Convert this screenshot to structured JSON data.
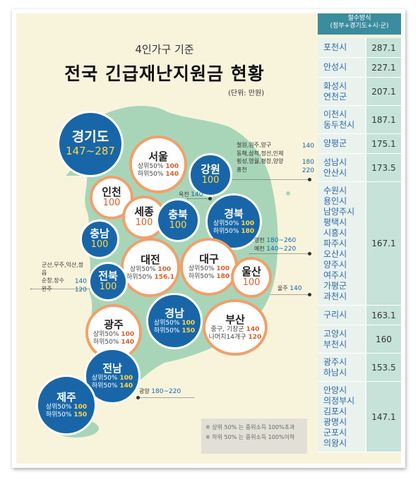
{
  "header": {
    "subtitle": "4인가구 기준",
    "title": "전국 긴급재난지원금 현황",
    "unit": "(단위: 만원)"
  },
  "regions": {
    "gyeonggi": {
      "name": "경기도",
      "range": "147~287"
    },
    "seoul": {
      "name": "서울",
      "line1_label": "상위50%",
      "line1_value": "100",
      "line2_label": "하위50%",
      "line2_value": "140"
    },
    "incheon": {
      "name": "인천",
      "value": "100"
    },
    "gangwon": {
      "name": "강원",
      "value": "100"
    },
    "sejong": {
      "name": "세종",
      "value": "100"
    },
    "chungbuk": {
      "name": "충북",
      "value": "100"
    },
    "gyeongbuk": {
      "name": "경북",
      "line1_label": "상위50%",
      "line1_value": "100",
      "line2_label": "하위50%",
      "line2_value": "180"
    },
    "chungnam": {
      "name": "충남",
      "value": "100"
    },
    "daejeon": {
      "name": "대전",
      "line1_label": "상위50%",
      "line1_value": "100",
      "line2_label": "하위50%",
      "line2_value": "156.1"
    },
    "daegu": {
      "name": "대구",
      "line1_label": "상위50%",
      "line1_value": "100",
      "line2_label": "하위50%",
      "line2_value": "180"
    },
    "ulsan": {
      "name": "울산",
      "value": "100"
    },
    "jeonbuk": {
      "name": "전북",
      "value": "100"
    },
    "gyeongnam": {
      "name": "경남",
      "line1_label": "상위50%",
      "line1_value": "100",
      "line2_label": "하위50%",
      "line2_value": "150"
    },
    "gwangju": {
      "name": "광주",
      "line1_label": "상위50%",
      "line1_value": "100",
      "line2_label": "하위50%",
      "line2_value": "140"
    },
    "busan": {
      "name": "부산",
      "line1_label": "중구, 기장군",
      "line1_value": "140",
      "line2_label": "나머지14개구",
      "line2_value": "120"
    },
    "jeonnam": {
      "name": "전남",
      "line1_label": "상위50%",
      "line1_value": "100",
      "line2_label": "하위50%",
      "line2_value": "140"
    },
    "jeju": {
      "name": "제주",
      "line1_label": "상위50%",
      "line1_value": "100",
      "line2_label": "하위50%",
      "line2_value": "150"
    }
  },
  "notes": {
    "gangwon_a_label": "철원,원주,양구",
    "gangwon_a_value": "140",
    "gangwon_b_label1": "동해,삼척,정선,인제",
    "gangwon_b_label2": "횡성,영월,평창,양양",
    "gangwon_b_value": "180",
    "gangwon_c_label": "홍천",
    "gangwon_c_value": "220",
    "okcheon_label": "옥천",
    "okcheon_value": "140",
    "yeongcheon_label": "영천",
    "yeongcheon_value": "180~260",
    "yecheon_label": "예천",
    "yecheon_value": "140~220",
    "jeonbuk_a_label1": "군산,무주,익산,정읍",
    "jeonbuk_a_label2": "순창,장수",
    "jeonbuk_a_value": "140",
    "wanju_label": "완주",
    "wanju_value": "120",
    "ulju_label": "울주",
    "ulju_value": "140",
    "gwangyang_label": "광양",
    "gwangyang_value": "180~220"
  },
  "legend": {
    "line1": "※ 상위 50% 는 중위소득 100%초과",
    "line2": "※ 하위 50% 는 중위소득 100%이하"
  },
  "table": {
    "header1": "절수방식",
    "header2": "(정부+경기도+시·군)",
    "rows": [
      {
        "names": [
          "포천시"
        ],
        "value": "287.1"
      },
      {
        "names": [
          "안성시"
        ],
        "value": "227.1"
      },
      {
        "names": [
          "화성시",
          "연천군"
        ],
        "value": "207.1"
      },
      {
        "names": [
          "이천시",
          "동두천시"
        ],
        "value": "187.1"
      },
      {
        "names": [
          "양평군"
        ],
        "value": "175.1"
      },
      {
        "names": [
          "성남시",
          "안산시"
        ],
        "value": "173.5"
      },
      {
        "names": [
          "수원시",
          "용인시",
          "남양주시",
          "평택시",
          "시흥시",
          "파주시",
          "오산시",
          "양주시",
          "여주시",
          "가평군",
          "과천시"
        ],
        "value": "167.1"
      },
      {
        "names": [
          "구리시"
        ],
        "value": "163.1"
      },
      {
        "names": [
          "고양시",
          "부천시"
        ],
        "value": "160"
      },
      {
        "names": [
          "광주시",
          "하남시"
        ],
        "value": "153.5"
      },
      {
        "names": [
          "안양시",
          "의정부시",
          "김포시",
          "광명시",
          "군포시",
          "의왕시"
        ],
        "value": "147.1"
      }
    ]
  },
  "colors": {
    "map_land": "#a8d5b8",
    "bubble_blue": "#1866a8",
    "bubble_border_orange": "#f0a06c",
    "accent_orange": "#d6602a",
    "table_header": "#3b8c9e"
  }
}
